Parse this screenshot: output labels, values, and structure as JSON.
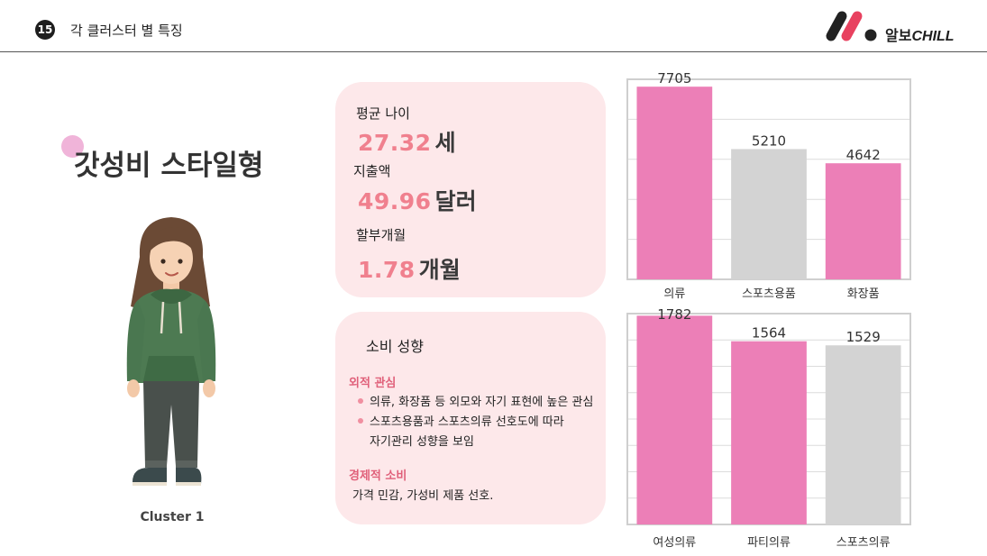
{
  "header": {
    "page_number": "15",
    "title": "각 클러스터 별 특징",
    "logo_text_ko": "알보",
    "logo_text_en": "CHILL"
  },
  "cluster": {
    "title": "갓성비 스타일형",
    "label": "Cluster 1"
  },
  "stats": {
    "age_label": "평균 나이",
    "age_value": "27.32",
    "age_unit": "세",
    "spend_label": "지출액",
    "spend_value": "49.96",
    "spend_unit": "달러",
    "installment_label": "할부개월",
    "installment_value": "1.78",
    "installment_unit": "개월"
  },
  "traits": {
    "title": "소비 성향",
    "section1_title": "외적 관심",
    "section1_bullet1": "의류, 화장품 등 외모와 자기 표현에 높은 관심",
    "section1_bullet2": "스포츠용품과 스포츠의류 선호도에 따라",
    "section1_bullet2_cont": "자기관리 성향을 보임",
    "section2_title": "경제적 소비",
    "section2_text": "가격 민감, 가성비 제품 선호."
  },
  "colors": {
    "pink": "#ec7fb7",
    "gray": "#d3d3d3",
    "card_bg": "#fde8ea",
    "accent": "#f0808e"
  },
  "chart_data": [
    {
      "type": "bar",
      "categories": [
        "의류",
        "스포츠용품",
        "화장품"
      ],
      "values": [
        7705,
        5210,
        4642
      ],
      "bar_colors": [
        "#ec7fb7",
        "#d3d3d3",
        "#ec7fb7"
      ],
      "ylim": [
        0,
        8000
      ],
      "grid": true
    },
    {
      "type": "bar",
      "categories": [
        "여성의류",
        "파티의류",
        "스포츠의류"
      ],
      "values": [
        1782,
        1564,
        1529
      ],
      "bar_colors": [
        "#ec7fb7",
        "#ec7fb7",
        "#d3d3d3"
      ],
      "ylim": [
        0,
        1800
      ],
      "grid": true
    }
  ]
}
